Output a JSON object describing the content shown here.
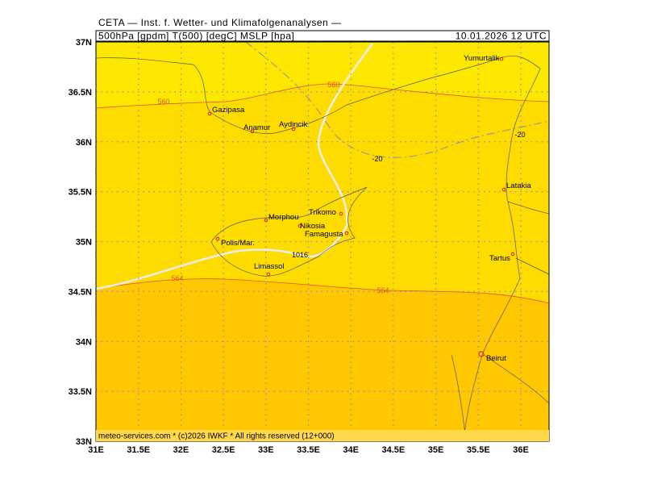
{
  "header": {
    "title": "CETA — Inst. f. Wetter- und Klimafolgenanalysen —",
    "field": "500hPa [gpdm] T(500) [degC] MSLP [hpa]",
    "datetime": "10.01.2026 12 UTC"
  },
  "footer": "meteo-services.com * (c)2026 IWKF * All rights reserved (12+000)",
  "axes": {
    "lon_ticks": [
      {
        "value": 31,
        "label": "31E"
      },
      {
        "value": 31.5,
        "label": "31.5E"
      },
      {
        "value": 32,
        "label": "32E"
      },
      {
        "value": 32.5,
        "label": "32.5E"
      },
      {
        "value": 33,
        "label": "33E"
      },
      {
        "value": 33.5,
        "label": "33.5E"
      },
      {
        "value": 34,
        "label": "34E"
      },
      {
        "value": 34.5,
        "label": "34.5E"
      },
      {
        "value": 35,
        "label": "35E"
      },
      {
        "value": 35.5,
        "label": "35.5E"
      },
      {
        "value": 36,
        "label": "36E"
      }
    ],
    "lat_ticks": [
      {
        "value": 33,
        "label": "33N"
      },
      {
        "value": 33.5,
        "label": "33.5N"
      },
      {
        "value": 34,
        "label": "34N"
      },
      {
        "value": 34.5,
        "label": "34.5N"
      },
      {
        "value": 35,
        "label": "35N"
      },
      {
        "value": 35.5,
        "label": "35.5N"
      },
      {
        "value": 36,
        "label": "36N"
      },
      {
        "value": 36.5,
        "label": "36.5N"
      },
      {
        "value": 37,
        "label": "37N"
      }
    ]
  },
  "cities": [
    "Yumurtalik",
    "Gazipasa",
    "Anamur",
    "Aydincik",
    "Latakia",
    "Trikomo",
    "Morphou",
    "Nikosia",
    "Famagusta",
    "Polis/Mar.",
    "Tartus",
    "Limassol",
    "Beirut"
  ],
  "contour_labels": [
    "560",
    "560",
    "564",
    "564",
    "-20",
    "-20",
    "1016"
  ]
}
